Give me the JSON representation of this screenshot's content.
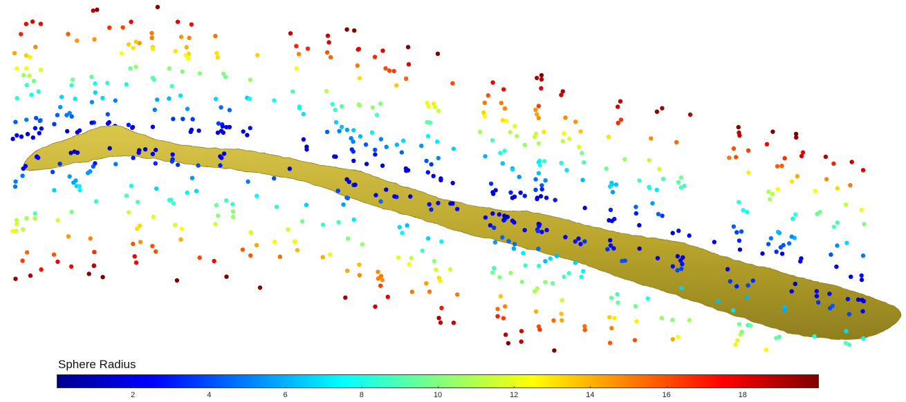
{
  "colorbar": {
    "title": "Sphere Radius",
    "min": 0,
    "max": 20,
    "ticks": [
      "2",
      "4",
      "6",
      "8",
      "10",
      "12",
      "14",
      "16",
      "18"
    ],
    "colormap": "jet",
    "colors": [
      "#00008f",
      "#0000ff",
      "#0080ff",
      "#00ffff",
      "#80ff80",
      "#ffff00",
      "#ff8000",
      "#ff0000",
      "#800000"
    ]
  },
  "scene": {
    "surface_color": "#c8b434",
    "surface_shadow": "#9a8a22",
    "background": "#ffffff"
  }
}
